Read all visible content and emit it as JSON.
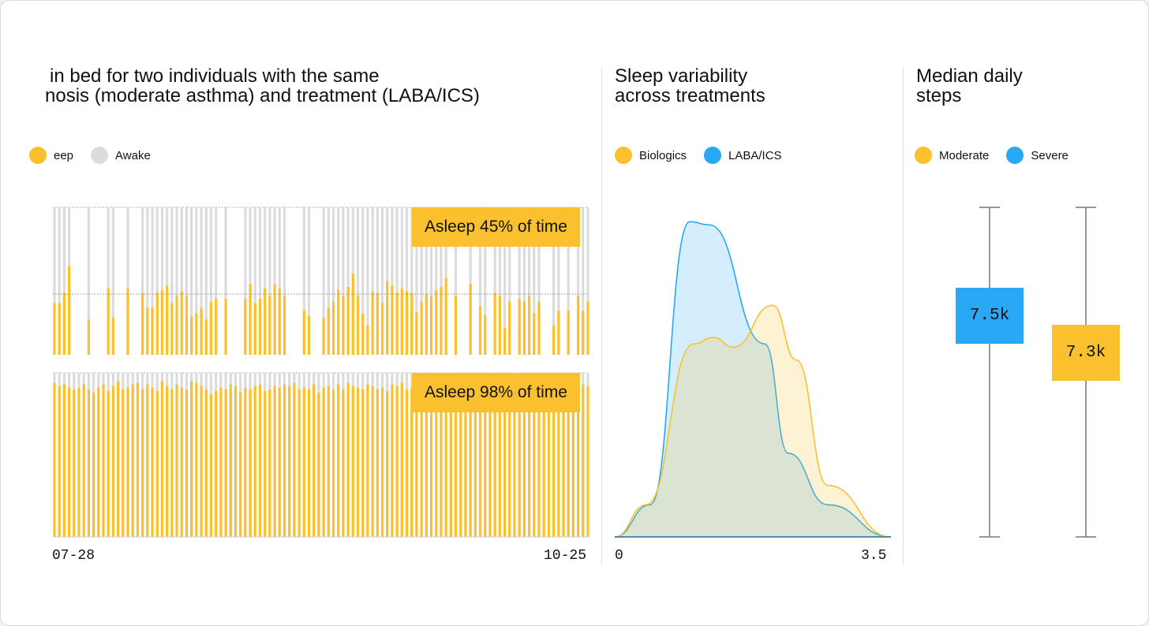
{
  "colors": {
    "asleep": "#fbc02d",
    "awake": "#dcdcdc",
    "biologics": "#fbc02d",
    "laba_ics": "#29a8f5",
    "moderate": "#fbc02d",
    "severe": "#29a8f5"
  },
  "panel1": {
    "title_line1": "in bed for two individuals with the same",
    "title_line2": "nosis (moderate asthma) and treatment (LABA/ICS)",
    "legend": [
      {
        "label": "eep",
        "color": "#fbc02d"
      },
      {
        "label": "Awake",
        "color": "#dcdcdc"
      }
    ],
    "x_start": "07-28",
    "x_end": "10-25",
    "callout_top": "Asleep 45% of time",
    "callout_bottom": "Asleep 98% of time"
  },
  "panel2": {
    "title_line1": "Sleep variability",
    "title_line2": "across treatments",
    "legend": [
      {
        "label": "Biologics",
        "color": "#fbc02d"
      },
      {
        "label": "LABA/ICS",
        "color": "#29a8f5"
      }
    ],
    "x_start": "0",
    "x_end": "3.5"
  },
  "panel3": {
    "title_line1": "Median daily",
    "title_line2": "steps",
    "legend": [
      {
        "label": "Moderate",
        "color": "#fbc02d"
      },
      {
        "label": "Severe",
        "color": "#29a8f5"
      }
    ],
    "box1_label": "7.5k",
    "box2_label": "7.3k"
  },
  "chart_data": [
    {
      "type": "bar",
      "title": "",
      "xlim": [
        "07-28",
        "10-25"
      ],
      "series": [
        {
          "name": "Asleep 45% of time",
          "values": [
            0.35,
            0.35,
            0.42,
            0.6,
            0.0,
            0.0,
            0.0,
            0.24,
            0.0,
            0.0,
            0.0,
            0.45,
            0.25,
            0.0,
            0.0,
            0.45,
            0.0,
            0.0,
            0.42,
            0.32,
            0.32,
            0.42,
            0.44,
            0.47,
            0.35,
            0.4,
            0.43,
            0.4,
            0.26,
            0.28,
            0.32,
            0.24,
            0.36,
            0.38,
            0.0,
            0.38,
            0.0,
            0.0,
            0.0,
            0.38,
            0.48,
            0.35,
            0.38,
            0.45,
            0.4,
            0.48,
            0.45,
            0.4,
            0.0,
            0.0,
            0.0,
            0.3,
            0.26,
            0.0,
            0.0,
            0.25,
            0.32,
            0.36,
            0.44,
            0.4,
            0.46,
            0.55,
            0.4,
            0.28,
            0.2,
            0.43,
            0.42,
            0.35,
            0.5,
            0.47,
            0.42,
            0.45,
            0.43,
            0.42,
            0.29,
            0.36,
            0.41,
            0.4,
            0.44,
            0.46,
            0.52,
            0.0,
            0.4,
            0.0,
            0.0,
            0.48,
            0.0,
            0.33,
            0.27,
            0.0,
            0.42,
            0.4,
            0.18,
            0.36,
            0.0,
            0.38,
            0.36,
            0.4,
            0.28,
            0.36,
            0.0,
            0.0,
            0.2,
            0.3,
            0.0,
            0.3,
            0.0,
            0.4,
            0.3,
            0.36
          ],
          "night_count": 110
        },
        {
          "name": "Asleep 98% of time",
          "values": [
            0.94,
            0.92,
            0.93,
            0.91,
            0.9,
            0.91,
            0.93,
            0.9,
            0.88,
            0.91,
            0.93,
            0.89,
            0.92,
            0.95,
            0.9,
            0.91,
            0.93,
            0.94,
            0.9,
            0.93,
            0.91,
            0.89,
            0.95,
            0.92,
            0.9,
            0.93,
            0.91,
            0.9,
            0.95,
            0.94,
            0.92,
            0.9,
            0.87,
            0.89,
            0.91,
            0.9,
            0.93,
            0.92,
            0.88,
            0.91,
            0.9,
            0.92,
            0.93,
            0.89,
            0.9,
            0.92,
            0.91,
            0.93,
            0.92,
            0.94,
            0.9,
            0.91,
            0.9,
            0.93,
            0.88,
            0.91,
            0.92,
            0.9,
            0.93,
            0.9,
            0.94,
            0.92,
            0.91,
            0.9,
            0.93,
            0.92,
            0.9,
            0.91,
            0.89,
            0.93,
            0.92,
            0.94,
            0.9,
            0.91,
            0.93,
            0.92,
            0.9,
            0.91,
            0.94,
            0.92,
            0.9,
            0.91,
            0.93,
            0.9,
            0.92,
            0.91,
            0.94,
            0.9,
            0.92,
            0.93,
            0.91,
            0.9,
            0.92,
            0.93,
            0.91,
            0.92,
            0.9,
            0.93,
            0.91,
            0.92,
            0.9,
            0.94,
            0.91,
            0.92,
            0.93,
            0.91,
            0.92,
            0.9,
            0.93,
            0.92
          ],
          "night_count": 110
        }
      ]
    },
    {
      "type": "area",
      "title": "Sleep variability across treatments",
      "xlim": [
        0,
        3.5
      ],
      "series": [
        {
          "name": "Biologics",
          "x": [
            0,
            0.4,
            1.0,
            1.25,
            1.5,
            2.0,
            2.3,
            2.7,
            3.5
          ],
          "y": [
            0,
            0.1,
            0.6,
            0.62,
            0.59,
            0.72,
            0.55,
            0.16,
            0
          ]
        },
        {
          "name": "LABA/ICS",
          "x": [
            0,
            0.45,
            0.95,
            1.2,
            1.9,
            2.2,
            2.7,
            3.5
          ],
          "y": [
            0,
            0.1,
            0.98,
            0.97,
            0.6,
            0.26,
            0.1,
            0
          ]
        }
      ]
    },
    {
      "type": "box",
      "title": "Median daily steps",
      "series": [
        {
          "name": "Severe",
          "median": "7.5k"
        },
        {
          "name": "Moderate",
          "median": "7.3k"
        }
      ]
    }
  ]
}
